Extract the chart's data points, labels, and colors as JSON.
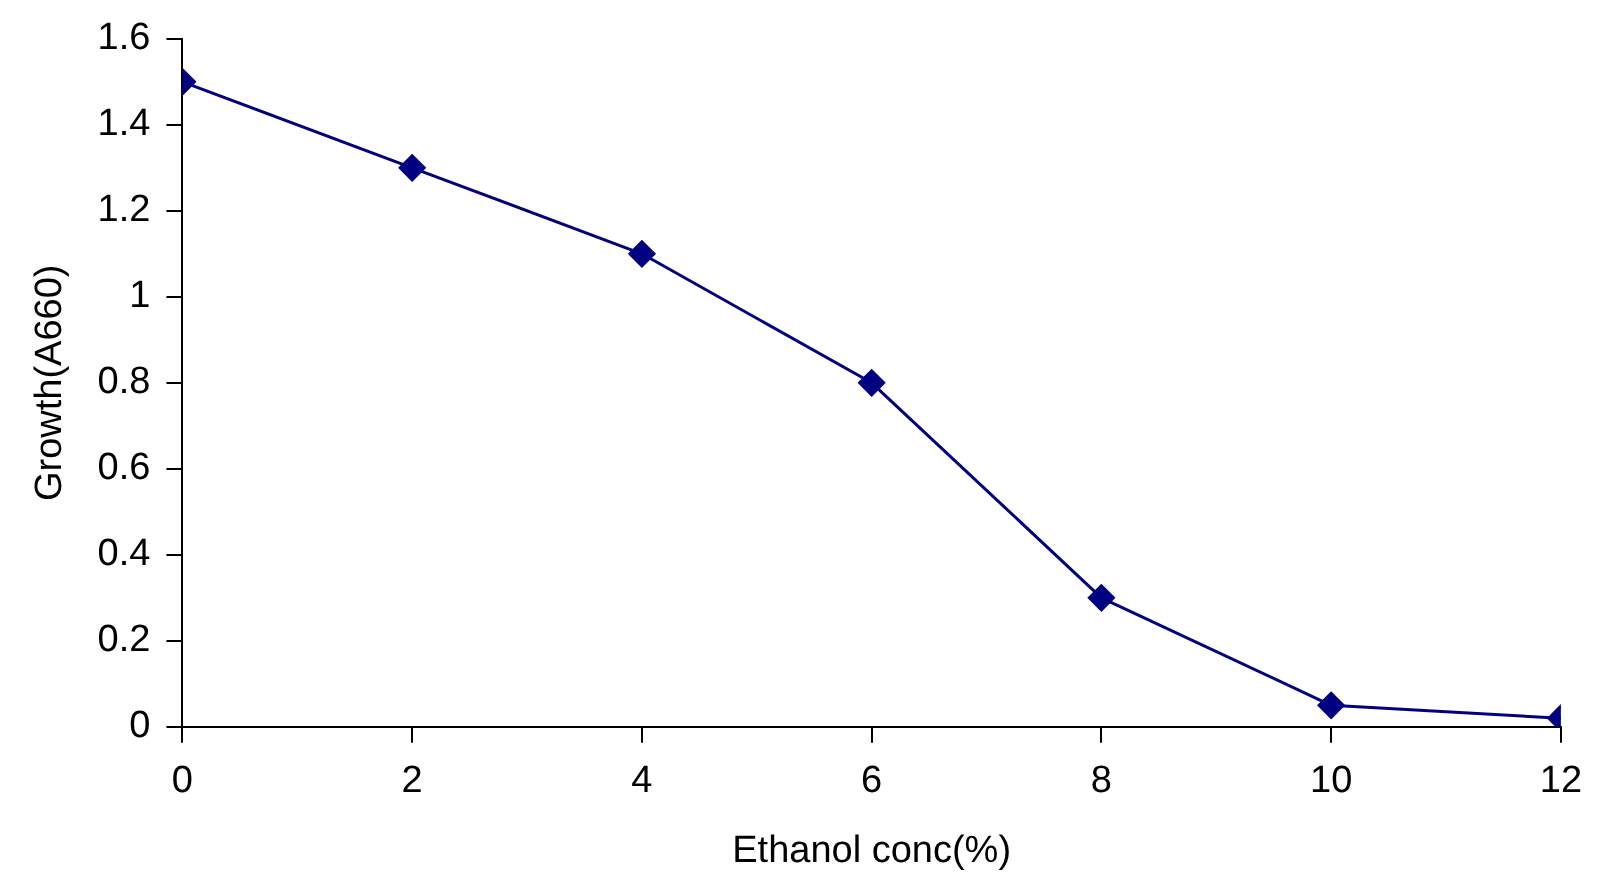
{
  "chart_data": {
    "type": "line",
    "xlabel": "Ethanol conc(%)",
    "ylabel": "Growth(A660)",
    "x": [
      0,
      2,
      4,
      6,
      8,
      10,
      12
    ],
    "series": [
      {
        "color": "#000080",
        "values": [
          1.5,
          1.3,
          1.1,
          0.8,
          0.3,
          0.05,
          0.02
        ]
      }
    ],
    "xlim": [
      0,
      12
    ],
    "xticks": [
      0,
      2,
      4,
      6,
      8,
      10,
      12
    ],
    "ylim": [
      0,
      1.6
    ],
    "yticks": [
      0,
      0.2,
      0.4,
      0.6,
      0.8,
      1,
      1.2,
      1.4,
      1.6
    ],
    "grid": false,
    "legend": false,
    "marker": "diamond",
    "line_style": "solid"
  }
}
